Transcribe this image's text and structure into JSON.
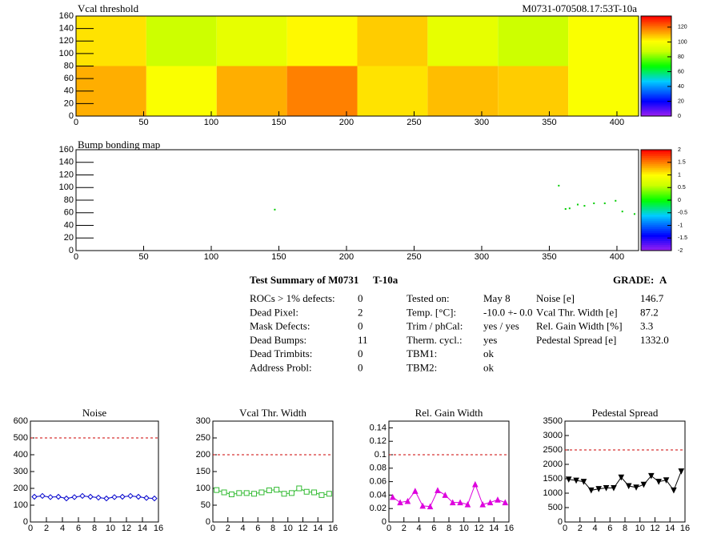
{
  "chart_data": [
    {
      "type": "heatmap",
      "title": "Vcal threshold",
      "subtitle": "M0731-070508.17:53T-10a",
      "x_edges": [
        0,
        52,
        104,
        156,
        208,
        260,
        312,
        364,
        416
      ],
      "y_edges": [
        0,
        80,
        160
      ],
      "values": [
        [
          112,
          100,
          112,
          118,
          105,
          110,
          108,
          100
        ],
        [
          105,
          88,
          95,
          102,
          108,
          95,
          88,
          100
        ]
      ],
      "xlim": [
        0,
        416
      ],
      "ylim": [
        0,
        160
      ],
      "xticks": [
        0,
        50,
        100,
        150,
        200,
        250,
        300,
        350,
        400
      ],
      "yticks": [
        0,
        20,
        40,
        60,
        80,
        100,
        120,
        140,
        160
      ],
      "zlim": [
        0,
        135
      ],
      "zticks": [
        0,
        20,
        40,
        60,
        80,
        100,
        120
      ]
    },
    {
      "type": "scatter",
      "title": "Bump bonding map",
      "color": "#00cc00",
      "x": [
        147,
        357,
        362,
        365,
        371,
        376,
        383,
        391,
        399,
        404,
        413
      ],
      "y": [
        65,
        103,
        66,
        67,
        73,
        71,
        75,
        75,
        79,
        62,
        58
      ],
      "xlim": [
        0,
        416
      ],
      "ylim": [
        0,
        160
      ],
      "xticks": [
        0,
        50,
        100,
        150,
        200,
        250,
        300,
        350,
        400
      ],
      "yticks": [
        0,
        20,
        40,
        60,
        80,
        100,
        120,
        140,
        160
      ],
      "zlim": [
        -2,
        2
      ],
      "zticks": [
        -2,
        -1.5,
        -1,
        -0.5,
        0,
        0.5,
        1,
        1.5,
        2
      ]
    },
    {
      "type": "line",
      "title": "Noise",
      "color": "#0000cc",
      "marker": "diamond",
      "threshold": 500,
      "threshold_color": "#cc0000",
      "x": [
        0,
        1,
        2,
        3,
        4,
        5,
        6,
        7,
        8,
        9,
        10,
        11,
        12,
        13,
        14,
        15
      ],
      "values": [
        150,
        155,
        148,
        150,
        140,
        148,
        155,
        150,
        145,
        140,
        148,
        150,
        155,
        150,
        143,
        140
      ],
      "xlim": [
        0,
        16
      ],
      "xticks": [
        0,
        2,
        4,
        6,
        8,
        10,
        12,
        14,
        16
      ],
      "ylim": [
        0,
        600
      ],
      "yticks": [
        0,
        100,
        200,
        300,
        400,
        500,
        600
      ]
    },
    {
      "type": "line",
      "title": "Vcal Thr. Width",
      "color": "#33bb33",
      "marker": "square",
      "threshold": 200,
      "threshold_color": "#cc0000",
      "x": [
        0,
        1,
        2,
        3,
        4,
        5,
        6,
        7,
        8,
        9,
        10,
        11,
        12,
        13,
        14,
        15
      ],
      "values": [
        95,
        88,
        82,
        86,
        86,
        84,
        88,
        94,
        96,
        84,
        86,
        100,
        90,
        88,
        80,
        84
      ],
      "xlim": [
        0,
        16
      ],
      "xticks": [
        0,
        2,
        4,
        6,
        8,
        10,
        12,
        14,
        16
      ],
      "ylim": [
        0,
        300
      ],
      "yticks": [
        0,
        50,
        100,
        150,
        200,
        250,
        300
      ]
    },
    {
      "type": "line",
      "title": "Rel. Gain Width",
      "color": "#dd00dd",
      "marker": "triangle",
      "threshold": 0.1,
      "threshold_color": "#cc0000",
      "x": [
        0,
        1,
        2,
        3,
        4,
        5,
        6,
        7,
        8,
        9,
        10,
        11,
        12,
        13,
        14,
        15
      ],
      "values": [
        0.037,
        0.029,
        0.031,
        0.046,
        0.024,
        0.023,
        0.047,
        0.04,
        0.029,
        0.029,
        0.026,
        0.056,
        0.026,
        0.029,
        0.033,
        0.029
      ],
      "xlim": [
        0,
        16
      ],
      "xticks": [
        0,
        2,
        4,
        6,
        8,
        10,
        12,
        14,
        16
      ],
      "ylim": [
        0,
        0.15
      ],
      "yticks": [
        0,
        0.02,
        0.04,
        0.06,
        0.08,
        0.1,
        0.12,
        0.14
      ]
    },
    {
      "type": "line",
      "title": "Pedestal Spread",
      "color": "#000000",
      "marker": "triangle-down",
      "threshold": 2500,
      "threshold_color": "#cc0000",
      "x": [
        0,
        1,
        2,
        3,
        4,
        5,
        6,
        7,
        8,
        9,
        10,
        11,
        12,
        13,
        14,
        15
      ],
      "values": [
        1480,
        1440,
        1400,
        1100,
        1150,
        1180,
        1180,
        1550,
        1250,
        1200,
        1300,
        1600,
        1400,
        1450,
        1100,
        1760
      ],
      "xlim": [
        0,
        16
      ],
      "xticks": [
        0,
        2,
        4,
        6,
        8,
        10,
        12,
        14,
        16
      ],
      "ylim": [
        0,
        3500
      ],
      "yticks": [
        0,
        500,
        1000,
        1500,
        2000,
        2500,
        3000,
        3500
      ]
    }
  ],
  "summary": {
    "title": "Test Summary of M0731",
    "test": "T-10a",
    "grade_label": "GRADE:",
    "grade": "A",
    "columns": [
      [
        [
          "ROCs > 1% defects:",
          0
        ],
        [
          "Dead Pixel:",
          2
        ],
        [
          "Mask Defects:",
          0
        ],
        [
          "Dead Bumps:",
          11
        ],
        [
          "Dead Trimbits:",
          0
        ],
        [
          "Address Probl:",
          0
        ]
      ],
      [
        [
          "Tested on:",
          "May 8"
        ],
        [
          "Temp. [°C]:",
          "-10.0 +- 0.0"
        ],
        [
          "Trim / phCal:",
          "yes / yes"
        ],
        [
          "Therm. cycl.:",
          "yes"
        ],
        [
          "TBM1:",
          "ok"
        ],
        [
          "TBM2:",
          "ok"
        ]
      ],
      [
        [
          "Noise [e]",
          146.7
        ],
        [
          "Vcal Thr. Width [e]",
          87.2
        ],
        [
          "Rel. Gain Width [%]",
          3.3
        ],
        [
          "Pedestal Spread [e]",
          1332.0
        ]
      ]
    ]
  }
}
